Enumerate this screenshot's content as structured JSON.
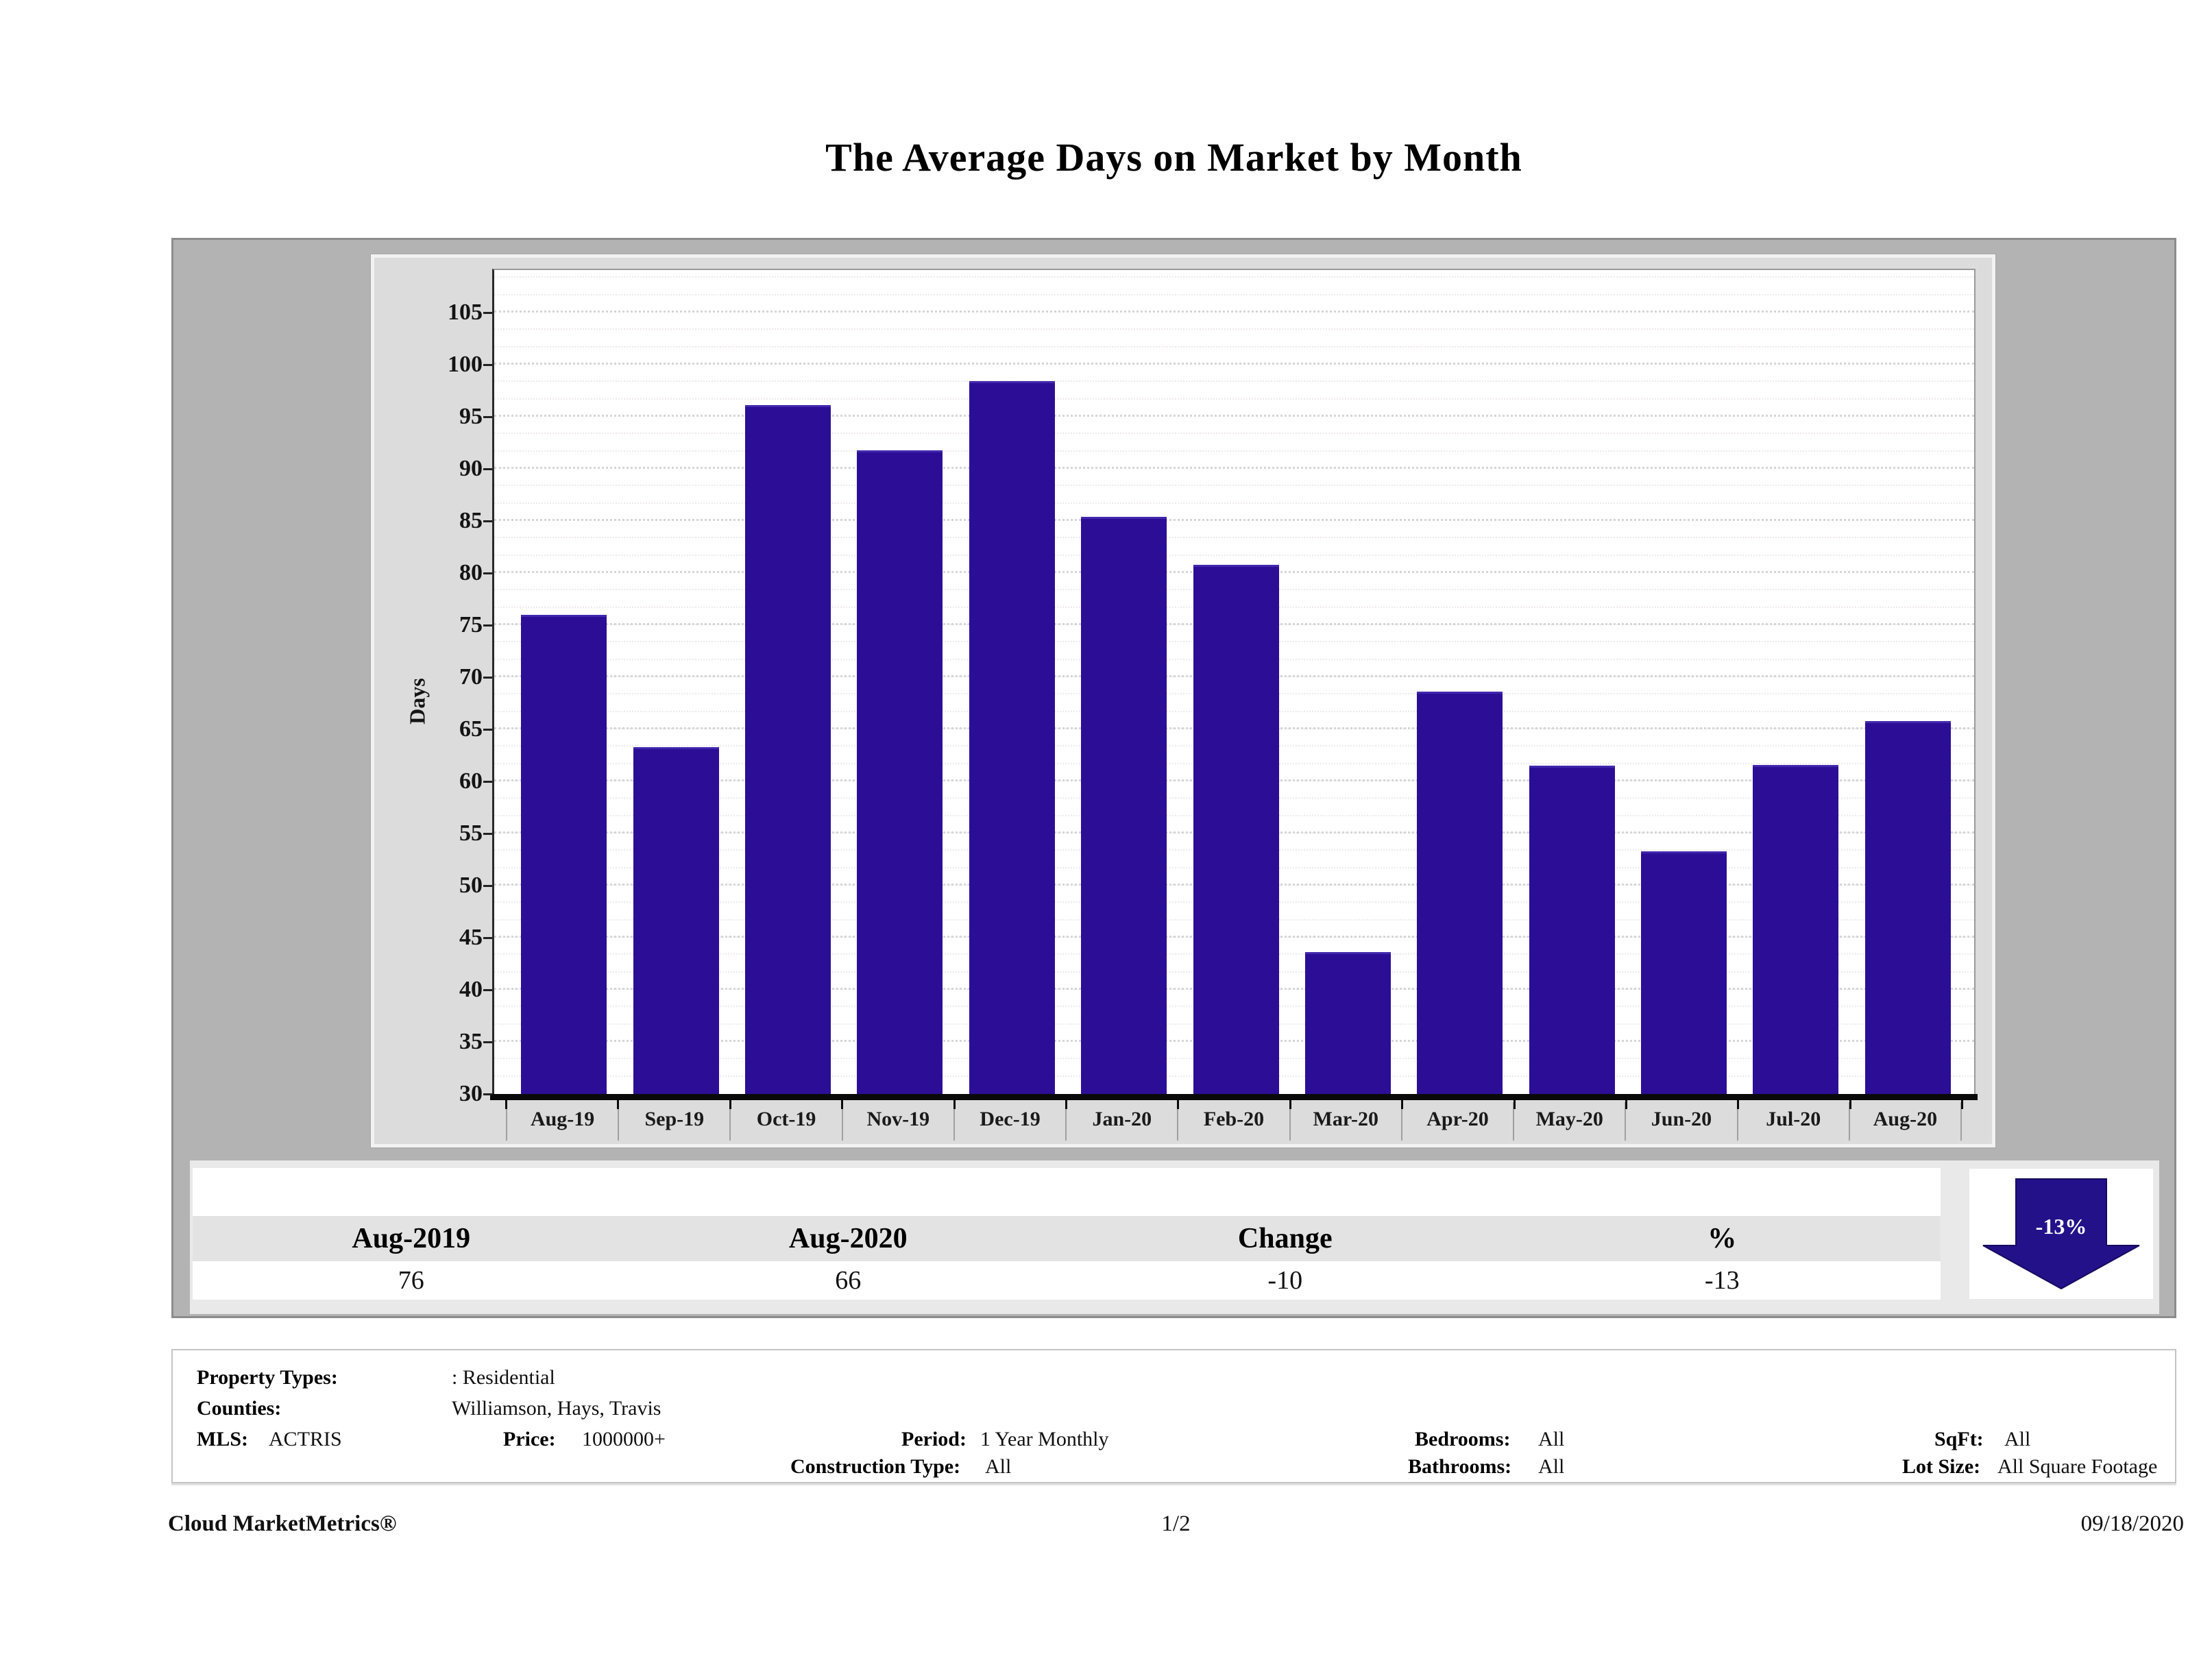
{
  "page": {
    "title": "The Average Days on Market by Month"
  },
  "chart_data": {
    "type": "bar",
    "title": "The Average Days on Market by Month",
    "categories": [
      "Aug-19",
      "Sep-19",
      "Oct-19",
      "Nov-19",
      "Dec-19",
      "Jan-20",
      "Feb-20",
      "Mar-20",
      "Apr-20",
      "May-20",
      "Jun-20",
      "Jul-20",
      "Aug-20"
    ],
    "values": [
      76,
      63.3,
      96.1,
      91.8,
      98.4,
      85.4,
      80.8,
      43.6,
      68.6,
      61.5,
      53.3,
      61.6,
      65.8
    ],
    "xlabel": "",
    "ylabel": "Days",
    "ylim": [
      30,
      109.2
    ],
    "yticks": [
      30,
      35,
      40,
      45,
      50,
      55,
      60,
      65,
      70,
      75,
      80,
      85,
      90,
      95,
      100,
      105
    ],
    "grid": true,
    "legend": false,
    "bar_color": "#2C0E96"
  },
  "summary_table": {
    "headers": [
      "Aug-2019",
      "Aug-2020",
      "Change",
      "%"
    ],
    "values": [
      "76",
      "66",
      "-10",
      "-13"
    ],
    "indicator": {
      "label": "-13%",
      "direction": "down",
      "color": "#231189"
    }
  },
  "filters": {
    "property_types_label": "Property Types:",
    "property_types_value": ": Residential",
    "counties_label": "Counties:",
    "counties_value": "Williamson, Hays, Travis",
    "mls_label": "MLS:",
    "mls_value": "ACTRIS",
    "price_label": "Price:",
    "price_value": "1000000+",
    "period_label": "Period:",
    "period_value": "1 Year Monthly",
    "construction_label": "Construction Type:",
    "construction_value": "All",
    "bedrooms_label": "Bedrooms:",
    "bedrooms_value": "All",
    "bathrooms_label": "Bathrooms:",
    "bathrooms_value": "All",
    "sqft_label": "SqFt:",
    "sqft_value": "All",
    "lot_size_label": "Lot Size:",
    "lot_size_value": "All Square Footage"
  },
  "footer": {
    "brand": "Cloud MarketMetrics®",
    "page_number": "1/2",
    "date": "09/18/2020"
  }
}
